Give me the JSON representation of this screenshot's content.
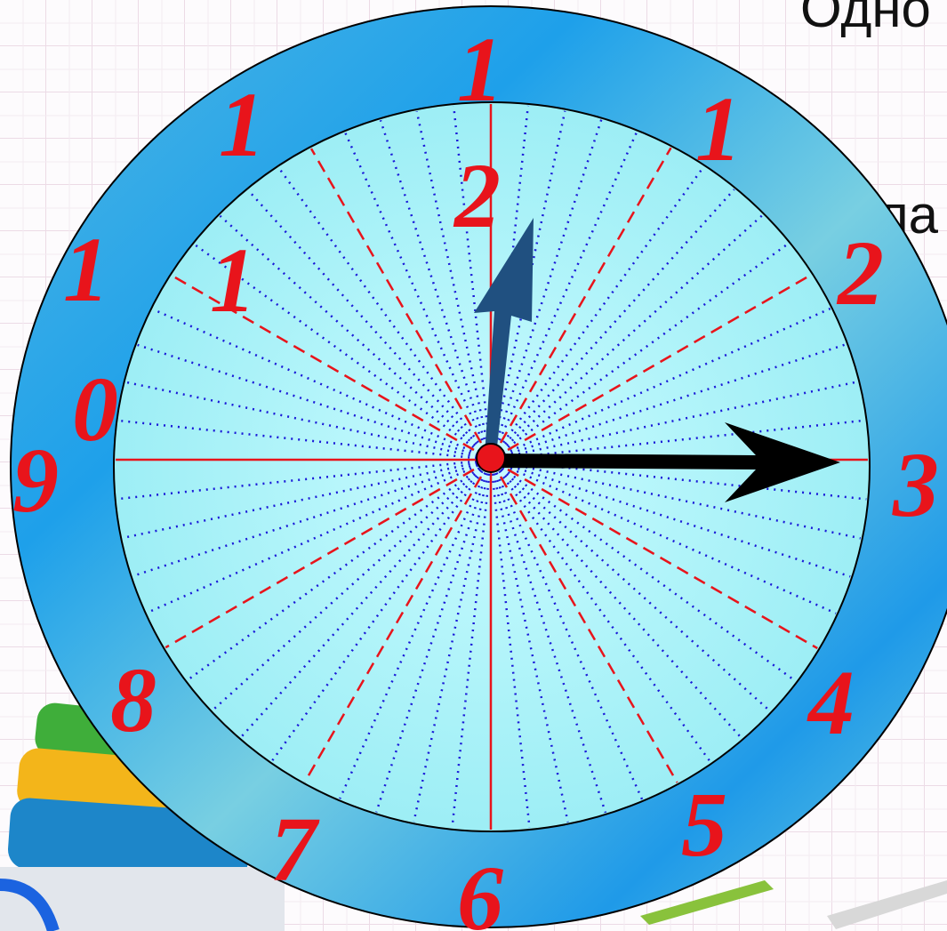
{
  "slide_text": [
    "Одно",
    "бла"
  ],
  "clock": {
    "numerals": [
      "1",
      "1",
      "1",
      "2",
      "1",
      "1",
      "2",
      "0",
      "9",
      "3",
      "4",
      "8",
      "5",
      "7",
      "6"
    ]
  }
}
